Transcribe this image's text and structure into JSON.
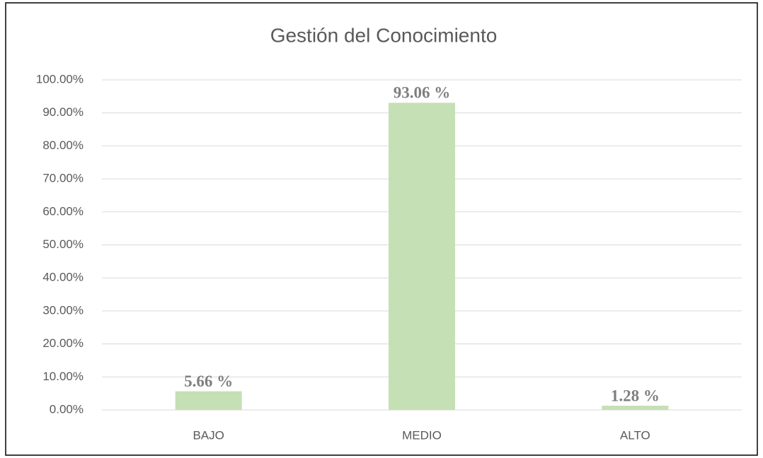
{
  "chart_data": {
    "type": "bar",
    "title": "Gestión del Conocimiento",
    "categories": [
      "BAJO",
      "MEDIO",
      "ALTO"
    ],
    "values": [
      5.66,
      93.06,
      1.28
    ],
    "value_labels": [
      "5.66 %",
      "93.06 %",
      "1.28 %"
    ],
    "color": "#c5e0b4",
    "ylim": [
      0,
      100
    ],
    "yticks": [
      {
        "value": 0,
        "label": "0.00%"
      },
      {
        "value": 10,
        "label": "10.00%"
      },
      {
        "value": 20,
        "label": "20.00%"
      },
      {
        "value": 30,
        "label": "30.00%"
      },
      {
        "value": 40,
        "label": "40.00%"
      },
      {
        "value": 50,
        "label": "50.00%"
      },
      {
        "value": 60,
        "label": "60.00%"
      },
      {
        "value": 70,
        "label": "70.00%"
      },
      {
        "value": 80,
        "label": "80.00%"
      },
      {
        "value": 90,
        "label": "90.00%"
      },
      {
        "value": 100,
        "label": "100.00%"
      }
    ],
    "grid": true
  }
}
